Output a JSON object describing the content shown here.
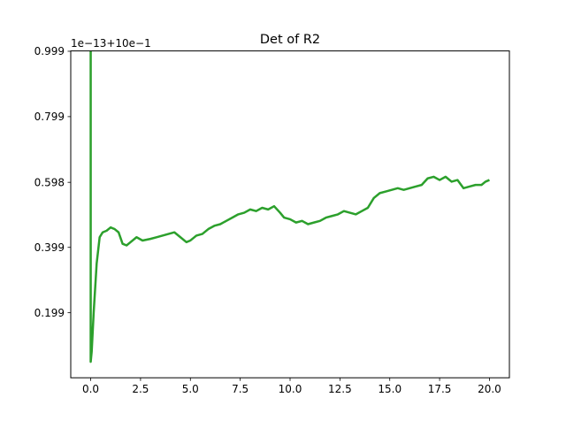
{
  "chart_data": {
    "type": "line",
    "title": "Det of R2",
    "offset_text": "1e−13+10e−1",
    "xlabel": "",
    "ylabel": "",
    "xlim": [
      -1.0,
      21.0
    ],
    "ylim": [
      0.0,
      1.0
    ],
    "grid": false,
    "xticks": [
      0.0,
      2.5,
      5.0,
      7.5,
      10.0,
      12.5,
      15.0,
      17.5,
      20.0
    ],
    "xtick_labels": [
      "0.0",
      "2.5",
      "5.0",
      "7.5",
      "10.0",
      "12.5",
      "15.0",
      "17.5",
      "20.0"
    ],
    "yticks": [
      0.199,
      0.399,
      0.598,
      0.799,
      0.999
    ],
    "ytick_labels": [
      "0.199",
      "0.399",
      "0.598",
      "0.799",
      "0.999"
    ],
    "series": [
      {
        "color": "#2ca02c",
        "x": [
          0,
          0.0,
          0.05,
          0.15,
          0.3,
          0.45,
          0.6,
          0.8,
          1.0,
          1.2,
          1.4,
          1.6,
          1.8,
          2.0,
          2.3,
          2.6,
          3.0,
          3.3,
          3.6,
          3.9,
          4.2,
          4.5,
          4.8,
          5.0,
          5.3,
          5.6,
          5.9,
          6.2,
          6.5,
          6.8,
          7.1,
          7.4,
          7.7,
          8.0,
          8.3,
          8.6,
          8.9,
          9.2,
          9.5,
          9.7,
          10.0,
          10.3,
          10.6,
          10.9,
          11.2,
          11.5,
          11.8,
          12.1,
          12.4,
          12.7,
          13.0,
          13.3,
          13.6,
          13.9,
          14.2,
          14.5,
          14.8,
          15.1,
          15.4,
          15.7,
          16.0,
          16.3,
          16.6,
          16.9,
          17.2,
          17.5,
          17.8,
          18.1,
          18.4,
          18.7,
          19.0,
          19.3,
          19.6,
          19.8,
          20.0
        ],
        "y": [
          0.999,
          0.049,
          0.08,
          0.2,
          0.35,
          0.43,
          0.445,
          0.45,
          0.46,
          0.455,
          0.445,
          0.41,
          0.405,
          0.415,
          0.43,
          0.42,
          0.425,
          0.43,
          0.435,
          0.44,
          0.445,
          0.43,
          0.415,
          0.42,
          0.435,
          0.44,
          0.455,
          0.465,
          0.47,
          0.48,
          0.49,
          0.5,
          0.505,
          0.515,
          0.51,
          0.52,
          0.515,
          0.525,
          0.505,
          0.49,
          0.485,
          0.475,
          0.48,
          0.47,
          0.475,
          0.48,
          0.49,
          0.495,
          0.5,
          0.51,
          0.505,
          0.5,
          0.51,
          0.52,
          0.55,
          0.565,
          0.57,
          0.575,
          0.58,
          0.575,
          0.58,
          0.585,
          0.59,
          0.61,
          0.615,
          0.605,
          0.615,
          0.6,
          0.605,
          0.58,
          0.585,
          0.59,
          0.59,
          0.6,
          0.605
        ]
      }
    ]
  }
}
